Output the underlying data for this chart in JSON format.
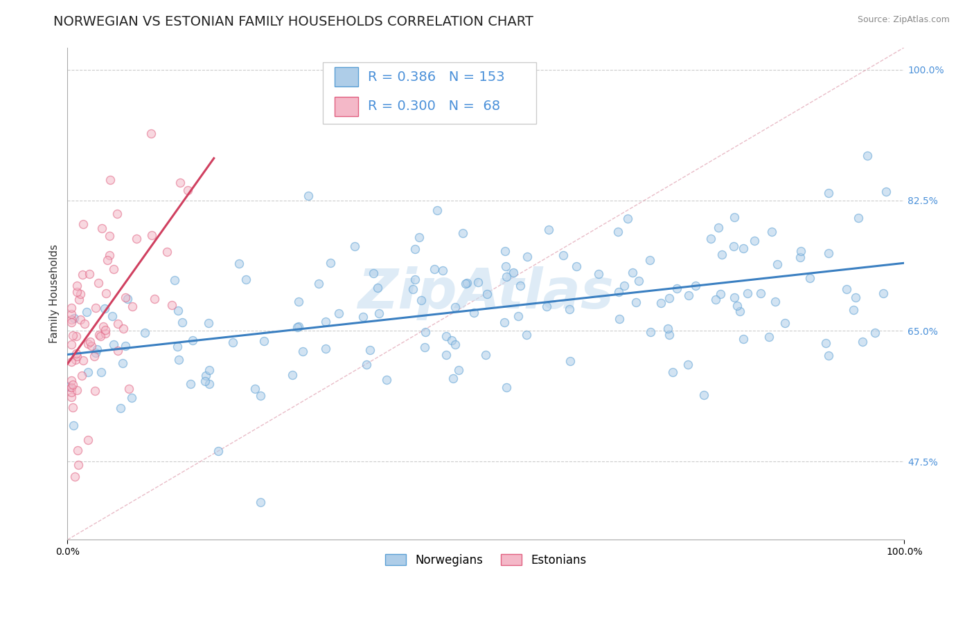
{
  "title": "NORWEGIAN VS ESTONIAN FAMILY HOUSEHOLDS CORRELATION CHART",
  "source": "Source: ZipAtlas.com",
  "ylabel": "Family Households",
  "norwegian_R": 0.386,
  "norwegian_N": 153,
  "estonian_R": 0.3,
  "estonian_N": 68,
  "norwegian_color": "#aecde8",
  "estonian_color": "#f4b8c8",
  "norwegian_edge_color": "#5a9fd4",
  "estonian_edge_color": "#e06080",
  "norwegian_line_color": "#3a7fc1",
  "estonian_line_color": "#d04060",
  "estonian_dash_color": "#e8a0b0",
  "legend_text_color": "#4a90d9",
  "watermark": "ZipAtlas",
  "watermark_color": "#c8dff0",
  "title_fontsize": 14,
  "label_fontsize": 11,
  "tick_fontsize": 10,
  "legend_fontsize": 14,
  "background_color": "#ffffff",
  "grid_color": "#cccccc",
  "scatter_size": 75,
  "scatter_alpha": 0.55,
  "scatter_linewidth": 1.0,
  "xlim": [
    0.0,
    1.0
  ],
  "ylim": [
    0.37,
    1.03
  ],
  "ytick_vals": [
    0.475,
    0.65,
    0.825,
    1.0
  ],
  "ytick_labels": [
    "47.5%",
    "65.0%",
    "82.5%",
    "100.0%"
  ]
}
